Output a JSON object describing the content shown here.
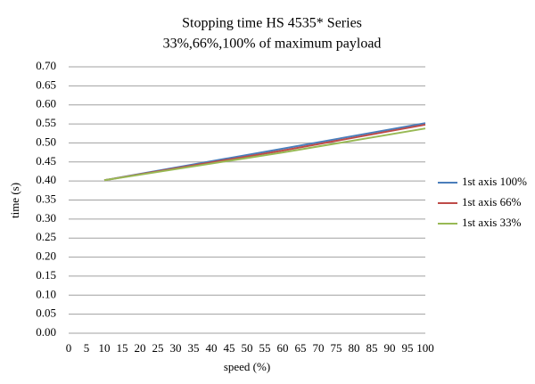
{
  "chart_data": {
    "type": "line",
    "title": "Stopping time HS 4535* Series",
    "subtitle": "33%,66%,100% of maximum payload",
    "x_label": "speed (%)",
    "y_label": "time (s)",
    "x": [
      10,
      60,
      100
    ],
    "series": [
      {
        "name": "1st axis 100%",
        "color": "#4a7ebb",
        "values": [
          0.402,
          0.485,
          0.552
        ]
      },
      {
        "name": "1st axis 66%",
        "color": "#be4b48",
        "values": [
          0.402,
          0.48,
          0.548
        ]
      },
      {
        "name": "1st axis 33%",
        "color": "#98b954",
        "values": [
          0.402,
          0.475,
          0.538
        ]
      }
    ],
    "xlim": [
      0,
      100
    ],
    "xticks": [
      0,
      5,
      10,
      15,
      20,
      25,
      30,
      35,
      40,
      45,
      50,
      55,
      60,
      65,
      70,
      75,
      80,
      85,
      90,
      95,
      100
    ],
    "ylim": [
      0,
      0.7
    ],
    "yticks": [
      {
        "value": 0,
        "label": "0.00"
      },
      {
        "value": 0.05,
        "label": "0.05"
      },
      {
        "value": 0.1,
        "label": "0.10"
      },
      {
        "value": 0.15,
        "label": "0.15"
      },
      {
        "value": 0.2,
        "label": "0.20"
      },
      {
        "value": 0.25,
        "label": "0.25"
      },
      {
        "value": 0.3,
        "label": "0.30"
      },
      {
        "value": 0.35,
        "label": "0.35"
      },
      {
        "value": 0.4,
        "label": "0.40"
      },
      {
        "value": 0.45,
        "label": "0.45"
      },
      {
        "value": 0.5,
        "label": "0.50"
      },
      {
        "value": 0.55,
        "label": "0.55"
      },
      {
        "value": 0.6,
        "label": "0.60"
      },
      {
        "value": 0.65,
        "label": "0.65"
      },
      {
        "value": 0.7,
        "label": "0.70"
      }
    ],
    "grid": true,
    "legend": "right"
  }
}
